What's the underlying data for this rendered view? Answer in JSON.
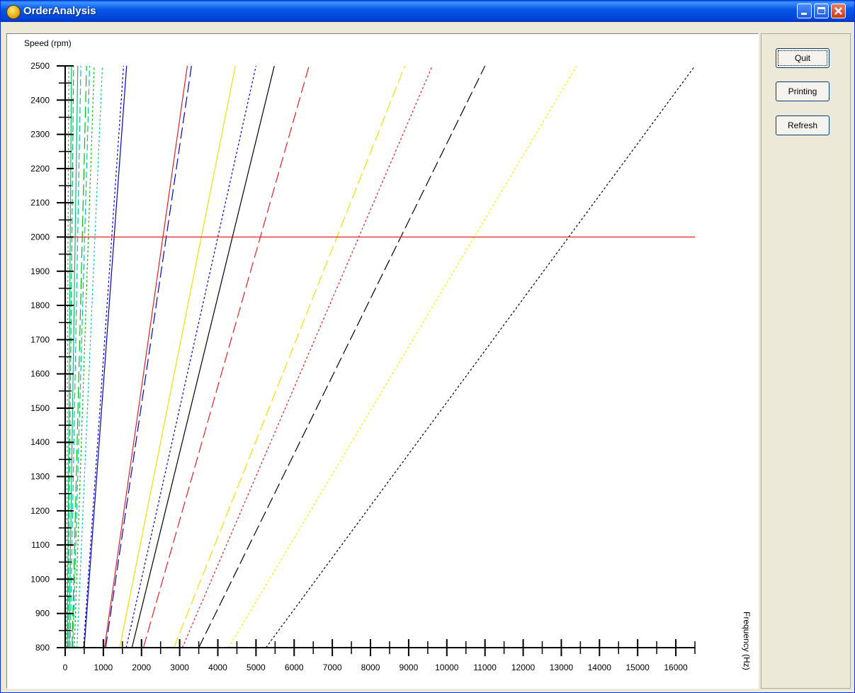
{
  "window": {
    "title": "OrderAnalysis"
  },
  "buttons": {
    "quit": "Quit",
    "printing": "Printing",
    "refresh": "Refresh"
  },
  "chart_data": {
    "type": "line",
    "ylabel": "Speed (rpm)",
    "xlabel": "Frequency (Hz)",
    "xlim": [
      0,
      16500
    ],
    "ylim": [
      800,
      2500
    ],
    "x_ticks": [
      0,
      1000,
      2000,
      3000,
      4000,
      5000,
      6000,
      7000,
      8000,
      9000,
      10000,
      11000,
      12000,
      13000,
      14000,
      15000,
      16000
    ],
    "y_ticks": [
      800,
      900,
      1000,
      1100,
      1200,
      1300,
      1400,
      1500,
      1600,
      1700,
      1800,
      1900,
      2000,
      2100,
      2200,
      2300,
      2400,
      2500
    ],
    "reference_line": {
      "y": 2000,
      "color": "#e02020"
    },
    "series": [
      {
        "x": [
          30,
          95
        ],
        "color": "#888888",
        "dash": "dot"
      },
      {
        "x": [
          55,
          165
        ],
        "color": "#00c060",
        "dash": "solid"
      },
      {
        "x": [
          70,
          220
        ],
        "color": "#00c060",
        "dash": "dash"
      },
      {
        "x": [
          100,
          330
        ],
        "color": "#00c060",
        "dash": "solid"
      },
      {
        "x": [
          130,
          410
        ],
        "color": "#00c0c0",
        "dash": "dash"
      },
      {
        "x": [
          180,
          560
        ],
        "color": "#00c000",
        "dash": "longdash"
      },
      {
        "x": [
          200,
          640
        ],
        "color": "#00c0c0",
        "dash": "dash"
      },
      {
        "x": [
          240,
          760
        ],
        "color": "#00c000",
        "dash": "dot"
      },
      {
        "x": [
          310,
          975
        ],
        "color": "#00c0c0",
        "dash": "dot"
      },
      {
        "x": [
          480,
          1530
        ],
        "color": "#0000c0",
        "dash": "dot"
      },
      {
        "x": [
          500,
          1610
        ],
        "color": "#0000c0",
        "dash": "solid"
      },
      {
        "x": [
          1030,
          3200
        ],
        "color": "#e02020",
        "dash": "solid"
      },
      {
        "x": [
          1060,
          3310
        ],
        "color": "#0000c0",
        "dash": "longdash"
      },
      {
        "x": [
          1430,
          4460
        ],
        "color": "#f0e000",
        "dash": "solid"
      },
      {
        "x": [
          1600,
          5000
        ],
        "color": "#0000c0",
        "dash": "dot"
      },
      {
        "x": [
          1750,
          5480
        ],
        "color": "#000000",
        "dash": "solid"
      },
      {
        "x": [
          2050,
          6390
        ],
        "color": "#e02020",
        "dash": "longdash"
      },
      {
        "x": [
          2850,
          8900
        ],
        "color": "#f0e000",
        "dash": "longdash"
      },
      {
        "x": [
          3070,
          9620
        ],
        "color": "#e02020",
        "dash": "dot"
      },
      {
        "x": [
          3500,
          11000
        ],
        "color": "#000000",
        "dash": "longdash"
      },
      {
        "x": [
          4280,
          13400
        ],
        "color": "#f0f000",
        "dash": "dot"
      },
      {
        "x": [
          5260,
          16500
        ],
        "color": "#000000",
        "dash": "dot"
      }
    ]
  }
}
